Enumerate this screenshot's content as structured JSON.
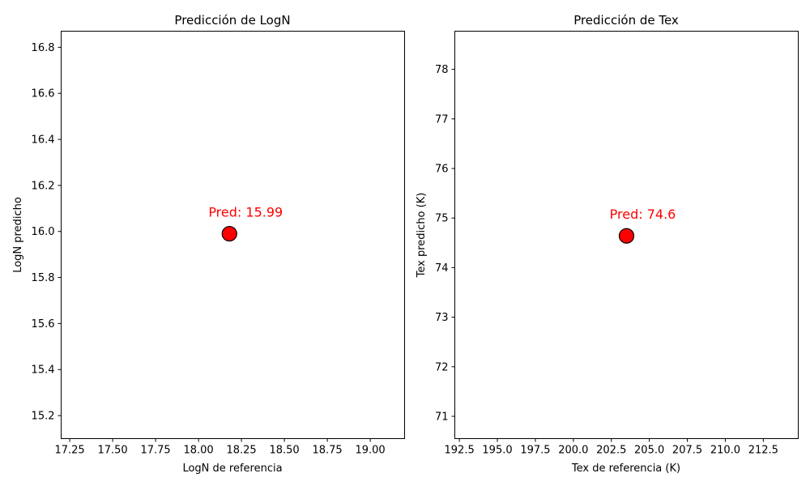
{
  "chart_data": [
    {
      "type": "scatter",
      "title": "Predicción de LogN",
      "xlabel": "LogN de referencia",
      "ylabel": "LogN predicho",
      "xlim": [
        17.2,
        19.2
      ],
      "ylim": [
        15.1,
        16.87
      ],
      "xticks": [
        17.25,
        17.5,
        17.75,
        18.0,
        18.25,
        18.5,
        18.75,
        19.0
      ],
      "xtick_labels": [
        "17.25",
        "17.50",
        "17.75",
        "18.00",
        "18.25",
        "18.50",
        "18.75",
        "19.00"
      ],
      "yticks": [
        15.2,
        15.4,
        15.6,
        15.8,
        16.0,
        16.2,
        16.4,
        16.6,
        16.8
      ],
      "ytick_labels": [
        "15.2",
        "15.4",
        "15.6",
        "15.8",
        "16.0",
        "16.2",
        "16.4",
        "16.6",
        "16.8"
      ],
      "points": [
        {
          "x": 18.18,
          "y": 15.99
        }
      ],
      "point_color": "#ff0000",
      "point_edge_color": "#000000",
      "annotation": {
        "text": "Pred: 15.99",
        "color": "#ff0000"
      },
      "grid": false
    },
    {
      "type": "scatter",
      "title": "Predicción de Tex",
      "xlabel": "Tex de referencia (K)",
      "ylabel": "Tex predicho (K)",
      "xlim": [
        192.2,
        214.8
      ],
      "ylim": [
        70.55,
        78.77
      ],
      "xticks": [
        192.5,
        195.0,
        197.5,
        200.0,
        202.5,
        205.0,
        207.5,
        210.0,
        212.5
      ],
      "xtick_labels": [
        "192.5",
        "195.0",
        "197.5",
        "200.0",
        "202.5",
        "205.0",
        "207.5",
        "210.0",
        "212.5"
      ],
      "yticks": [
        71,
        72,
        73,
        74,
        75,
        76,
        77,
        78
      ],
      "ytick_labels": [
        "71",
        "72",
        "73",
        "74",
        "75",
        "76",
        "77",
        "78"
      ],
      "points": [
        {
          "x": 203.5,
          "y": 74.64
        }
      ],
      "point_color": "#ff0000",
      "point_edge_color": "#000000",
      "annotation": {
        "text": "Pred: 74.6",
        "color": "#ff0000"
      },
      "grid": false
    }
  ]
}
